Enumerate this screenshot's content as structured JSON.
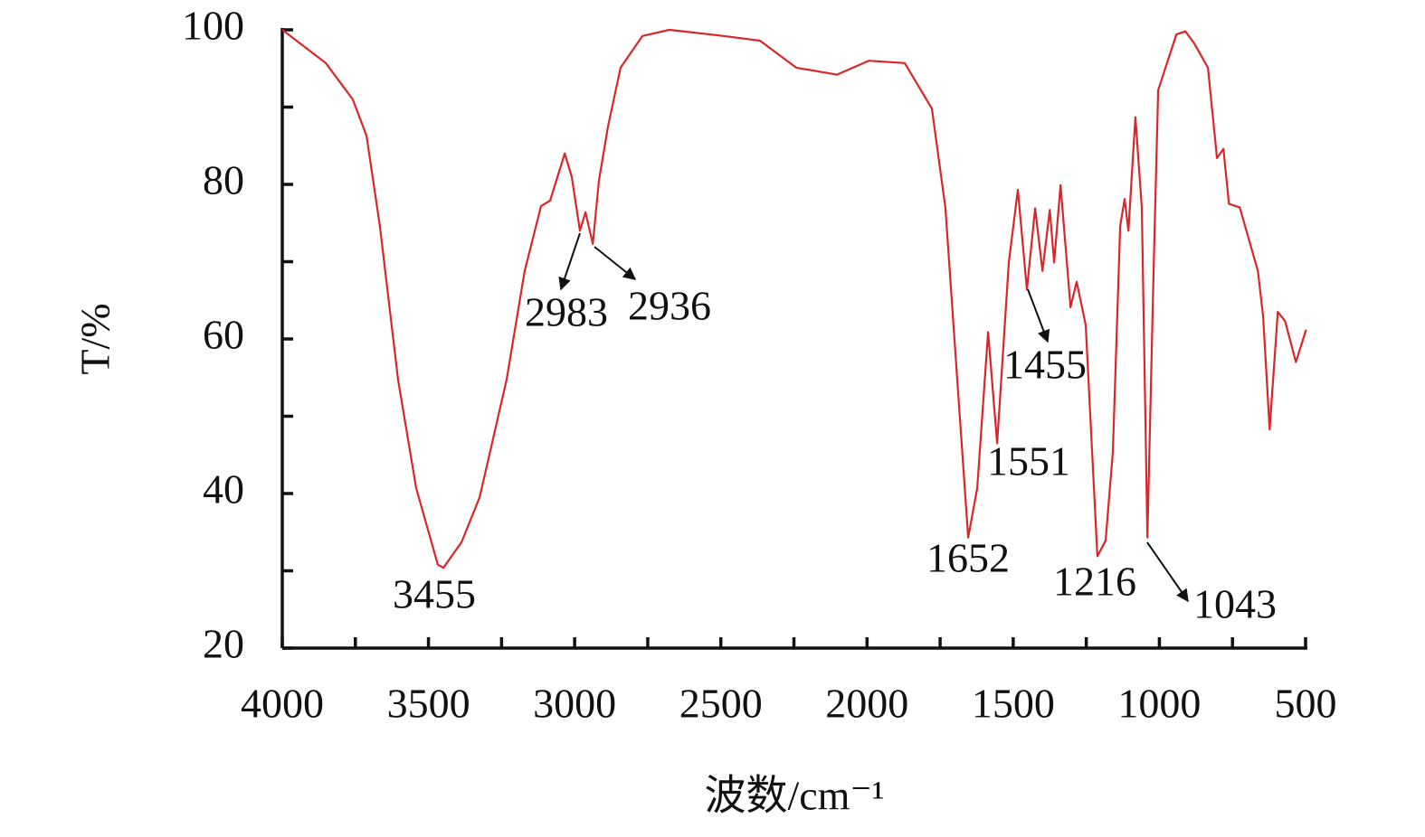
{
  "chart_data": {
    "type": "line",
    "xlabel": "波数/cm⁻¹",
    "ylabel": "T/%",
    "color": "#d9262b",
    "xlim": [
      4000,
      500
    ],
    "ylim": [
      20,
      100
    ],
    "xticks": [
      4000,
      3500,
      3000,
      2500,
      2000,
      1500,
      1000,
      500
    ],
    "xminorticks": [
      3750,
      3250,
      2750,
      2250,
      1750,
      1250,
      750
    ],
    "yticks": [
      20,
      40,
      60,
      80,
      100
    ],
    "yminorticks": [
      30,
      50,
      70,
      90
    ],
    "x": [
      4000,
      3851,
      3759,
      3712,
      3666,
      3604,
      3542,
      3468,
      3449,
      3387,
      3325,
      3233,
      3171,
      3115,
      3084,
      3034,
      3010,
      2982,
      2963,
      2938,
      2917,
      2886,
      2843,
      2768,
      2676,
      2490,
      2366,
      2242,
      2103,
      1994,
      1871,
      1778,
      1732,
      1685,
      1654,
      1623,
      1586,
      1555,
      1515,
      1484,
      1453,
      1425,
      1400,
      1375,
      1360,
      1338,
      1304,
      1283,
      1252,
      1212,
      1184,
      1159,
      1134,
      1119,
      1106,
      1082,
      1060,
      1041,
      1020,
      1004,
      942,
      911,
      880,
      834,
      803,
      781,
      762,
      725,
      663,
      645,
      623,
      595,
      570,
      533,
      498
    ],
    "values": [
      100,
      95.7,
      91,
      86.3,
      74.6,
      54.7,
      40.7,
      30.8,
      30.4,
      33.7,
      39.5,
      54.7,
      68.8,
      77.2,
      77.9,
      84,
      81,
      74,
      76.4,
      72.3,
      80.5,
      87.5,
      95.1,
      99.2,
      100,
      99.2,
      98.6,
      95.1,
      94.2,
      96,
      95.7,
      89.8,
      77,
      51.2,
      34.3,
      40.7,
      60.9,
      46.5,
      69.9,
      79.3,
      66.4,
      76.9,
      68.8,
      76.7,
      69.9,
      79.9,
      64.1,
      67.4,
      61.8,
      31.9,
      33.9,
      45.4,
      74.6,
      78.1,
      74,
      88.7,
      77,
      34.3,
      68.8,
      92.2,
      99.4,
      99.8,
      98.2,
      95.1,
      83.4,
      84.6,
      77.5,
      77,
      68.8,
      62.9,
      48.3,
      63.5,
      62.3,
      57,
      61.2
    ],
    "annotations": [
      {
        "label": "3455",
        "x": 3455,
        "arrow": false
      },
      {
        "label": "2983",
        "x": 2983,
        "arrow": true
      },
      {
        "label": "2936",
        "x": 2936,
        "arrow": true
      },
      {
        "label": "1652",
        "x": 1652,
        "arrow": false
      },
      {
        "label": "1551",
        "x": 1551,
        "arrow": false
      },
      {
        "label": "1455",
        "x": 1455,
        "arrow": true
      },
      {
        "label": "1216",
        "x": 1216,
        "arrow": false
      },
      {
        "label": "1043",
        "x": 1043,
        "arrow": true
      }
    ]
  }
}
